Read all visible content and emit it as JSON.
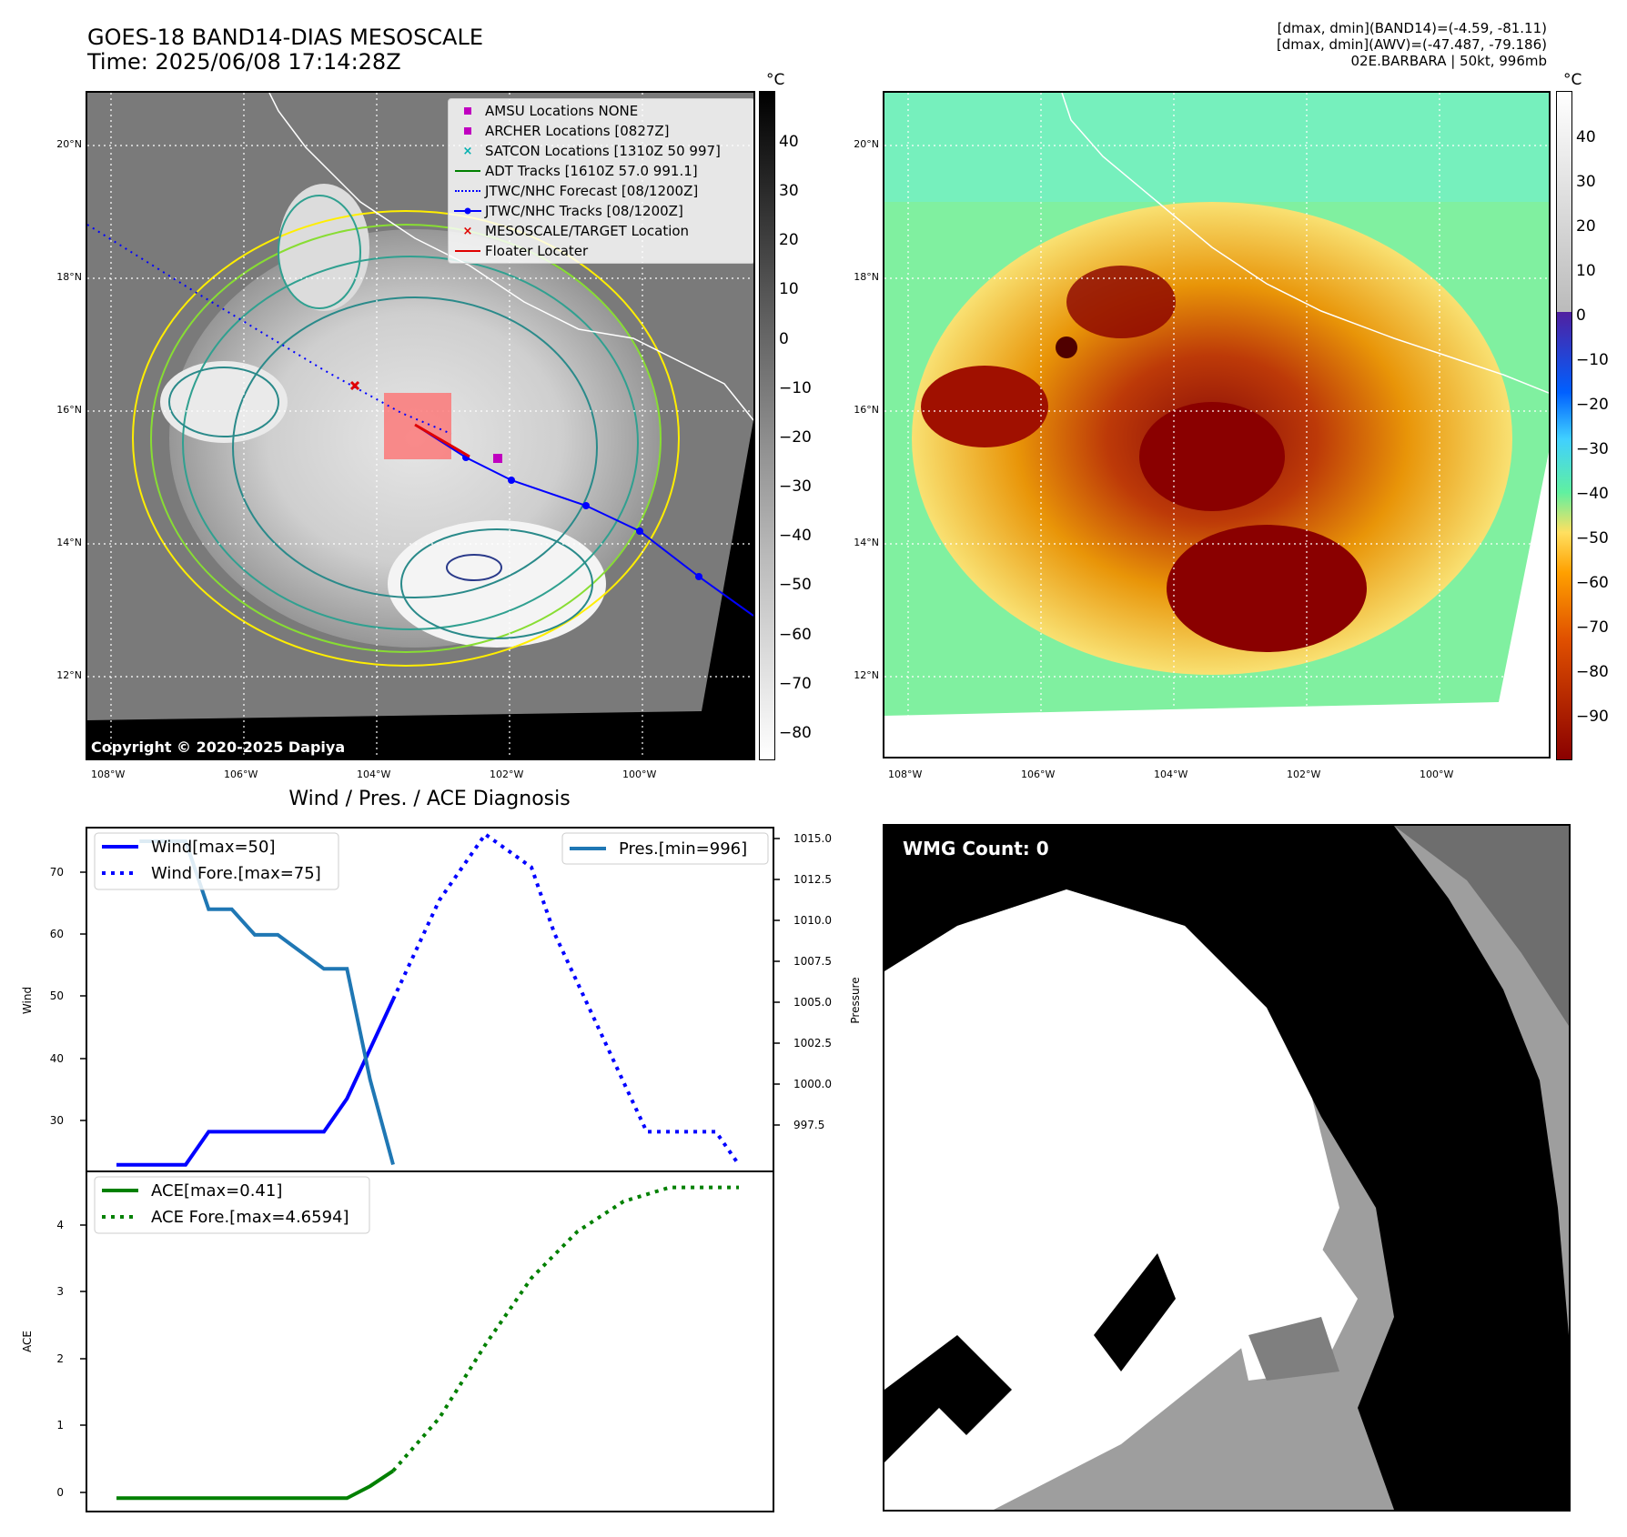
{
  "header": {
    "title_line1": "GOES-18 BAND14-DIAS MESOSCALE",
    "title_line2": "Time: 2025/06/08 17:14:28Z",
    "info_line1": "[dmax, dmin](BAND14)=(-4.59, -81.11)",
    "info_line2": "[dmax, dmin](AWV)=(-47.487, -79.186)",
    "info_line3": "02E.BARBARA | 50kt, 996mb"
  },
  "map_ir": {
    "lat_labels": [
      "20°N",
      "18°N",
      "16°N",
      "14°N",
      "12°N"
    ],
    "lon_labels": [
      "108°W",
      "106°W",
      "104°W",
      "102°W",
      "100°W"
    ],
    "copyright": "Copyright © 2020-2025 Dapiya",
    "legend": [
      {
        "label": "AMSU Locations NONE",
        "icon": "square-marker",
        "color": "#c000c0"
      },
      {
        "label": "ARCHER Locations [0827Z]",
        "icon": "square-marker",
        "color": "#c000c0"
      },
      {
        "label": "SATCON Locations [1310Z 50 997]",
        "icon": "x-marker",
        "color": "#00b0b0"
      },
      {
        "label": "ADT Tracks [1610Z 57.0 991.1]",
        "icon": "solid-line",
        "color": "#008000"
      },
      {
        "label": "JTWC/NHC Forecast [08/1200Z]",
        "icon": "dotted-line",
        "color": "#0000ff"
      },
      {
        "label": "JTWC/NHC Tracks [08/1200Z]",
        "icon": "line-dot",
        "color": "#0000ff"
      },
      {
        "label": "MESOSCALE/TARGET Location",
        "icon": "x-marker",
        "color": "#e00000"
      },
      {
        "label": "Floater Locater",
        "icon": "solid-line",
        "color": "#e00000"
      }
    ],
    "colorbar": {
      "unit": "°C",
      "ticks": [
        "40",
        "30",
        "20",
        "10",
        "0",
        "−10",
        "−20",
        "−30",
        "−40",
        "−50",
        "−60",
        "−70",
        "−80"
      ]
    }
  },
  "map_color": {
    "lat_labels": [
      "20°N",
      "18°N",
      "16°N",
      "14°N",
      "12°N"
    ],
    "lon_labels": [
      "108°W",
      "106°W",
      "104°W",
      "102°W",
      "100°W"
    ],
    "colorbar": {
      "unit": "°C",
      "ticks": [
        "40",
        "30",
        "20",
        "10",
        "0",
        "−10",
        "−20",
        "−30",
        "−40",
        "−50",
        "−60",
        "−70",
        "−80",
        "−90"
      ]
    }
  },
  "wmg": {
    "label": "WMG Count: 0"
  },
  "diag": {
    "title": "Wind / Pres. / ACE Diagnosis",
    "wind_axis_label": "Wind",
    "pressure_axis_label": "Pressure",
    "ace_axis_label": "ACE",
    "wind_ticks": [
      "70",
      "60",
      "50",
      "40",
      "30"
    ],
    "pressure_ticks": [
      "1015.0",
      "1012.5",
      "1010.0",
      "1007.5",
      "1005.0",
      "1002.5",
      "1000.0",
      "997.5"
    ],
    "ace_ticks": [
      "4",
      "3",
      "2",
      "1",
      "0"
    ],
    "legend_wind": "Wind[max=50]",
    "legend_wind_fore": "Wind Fore.[max=75]",
    "legend_pres": "Pres.[min=996]",
    "legend_ace": "ACE[max=0.41]",
    "legend_ace_fore": "ACE Fore.[max=4.6594]"
  },
  "chart_data": [
    {
      "type": "line",
      "title": "Wind / Pres. / ACE Diagnosis",
      "ylabel": "Wind",
      "ylim": [
        24,
        76
      ],
      "y2label": "Pressure",
      "y2lim": [
        995.6,
        1015.8
      ],
      "x": [
        0,
        1,
        2,
        3,
        4,
        5,
        6,
        7,
        8,
        9,
        10,
        11,
        12,
        13,
        14,
        15,
        16,
        17,
        18,
        19,
        20,
        21,
        22,
        23,
        24,
        25,
        26,
        27
      ],
      "series": [
        {
          "name": "Wind[max=50]",
          "axis": "left",
          "color": "#0000ff",
          "style": "solid",
          "x": [
            0,
            2,
            3,
            4,
            5,
            6,
            7,
            8,
            9,
            10,
            11,
            12
          ],
          "values": [
            25,
            25,
            25,
            30,
            30,
            30,
            30,
            30,
            30,
            35,
            42.5,
            50
          ]
        },
        {
          "name": "Wind Fore.[max=75]",
          "axis": "left",
          "color": "#0000ff",
          "style": "dotted",
          "x": [
            12,
            14,
            16,
            18,
            19,
            20,
            21,
            22,
            23,
            24,
            25,
            26,
            27
          ],
          "values": [
            50,
            65,
            75,
            70,
            60,
            52.5,
            45,
            37.5,
            30,
            30,
            30,
            30,
            25
          ]
        },
        {
          "name": "Pres.[min=996]",
          "axis": "right",
          "color": "#1f77b4",
          "style": "solid",
          "x": [
            1,
            3,
            4,
            5,
            6,
            7,
            8,
            9,
            10,
            11,
            12
          ],
          "values": [
            1015,
            1015,
            1011,
            1011,
            1009.5,
            1009.5,
            1008.5,
            1007.5,
            1007.5,
            1001,
            996
          ]
        }
      ]
    },
    {
      "type": "line",
      "ylabel": "ACE",
      "ylim": [
        -0.2,
        4.9
      ],
      "series": [
        {
          "name": "ACE[max=0.41]",
          "color": "#008000",
          "style": "solid",
          "x": [
            0,
            10,
            11,
            12
          ],
          "values": [
            0,
            0,
            0.18,
            0.41
          ]
        },
        {
          "name": "ACE Fore.[max=4.6594]",
          "color": "#008000",
          "style": "dotted",
          "x": [
            12,
            14,
            16,
            18,
            20,
            22,
            24,
            25,
            27
          ],
          "values": [
            0.41,
            1.2,
            2.3,
            3.3,
            4.0,
            4.45,
            4.6594,
            4.6594,
            4.6594
          ]
        }
      ]
    }
  ],
  "colors": {
    "wind": "#0000ff",
    "pressure": "#1f77b4",
    "ace": "#008000",
    "axis": "#000000"
  }
}
